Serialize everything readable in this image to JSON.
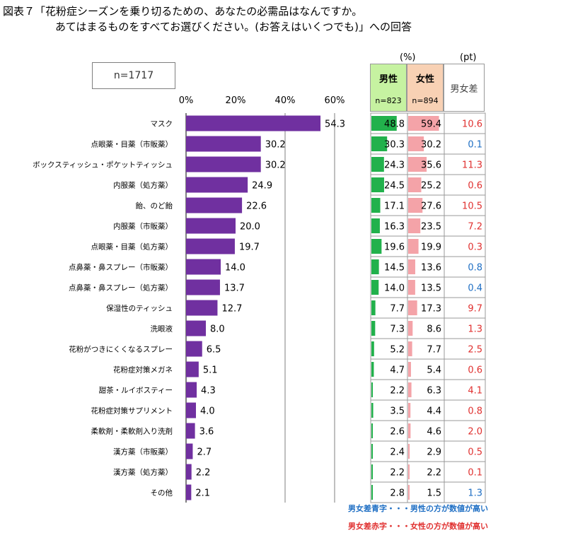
{
  "title_line1": "図表７「花粉症シーズンを乗り切るための、あなたの必需品はなんですか。",
  "title_line2": "あてはまるものをすべてお選びください。(お答えはいくつでも)」への回答",
  "sample_size": "n=1717",
  "pct_unit": "(%)",
  "pt_unit": "(pt)",
  "table_header": {
    "male": "男性",
    "male_n": "n=823",
    "female": "女性",
    "female_n": "n=894",
    "diff": "男女差"
  },
  "notes": {
    "blue": "男女差青字・・・男性の方が数値が高い",
    "red": "男女差赤字・・・女性の方が数値が高い"
  },
  "colors": {
    "bar": "#7030a0",
    "male_bar": "#22b14c",
    "female_bar": "#f4a3a8",
    "diff_male_higher": "#1f6fc4",
    "diff_female_higher": "#e0302f"
  },
  "chart_data": {
    "type": "bar",
    "orientation": "horizontal",
    "xlim": [
      0,
      60
    ],
    "ticks": [
      "0%",
      "20%",
      "40%",
      "60%"
    ],
    "gridlines": [
      40,
      60
    ],
    "categories": [
      "マスク",
      "点眼薬・目薬（市販薬）",
      "ボックスティッシュ・ポケットティッシュ",
      "内服薬（処方薬）",
      "飴、のど飴",
      "内服薬（市販薬）",
      "点眼薬・目薬（処方薬）",
      "点鼻薬・鼻スプレー（市販薬）",
      "点鼻薬・鼻スプレー（処方薬）",
      "保湿性のティッシュ",
      "洗眼液",
      "花粉がつきにくくなるスプレー",
      "花粉症対策メガネ",
      "甜茶・ルイボスティー",
      "花粉症対策サプリメント",
      "柔軟剤・柔軟剤入り洗剤",
      "漢方薬（市販薬）",
      "漢方薬（処方薬）",
      "その他"
    ],
    "values": [
      "54.3",
      "30.2",
      "30.2",
      "24.9",
      "22.6",
      "20.0",
      "19.7",
      "14.0",
      "13.7",
      "12.7",
      "8.0",
      "6.5",
      "5.1",
      "4.3",
      "4.0",
      "3.6",
      "2.7",
      "2.2",
      "2.1"
    ],
    "male": [
      "48.8",
      "30.3",
      "24.3",
      "24.5",
      "17.1",
      "16.3",
      "19.6",
      "14.5",
      "14.0",
      "7.7",
      "7.3",
      "5.2",
      "4.7",
      "2.2",
      "3.5",
      "2.6",
      "2.4",
      "2.2",
      "2.8"
    ],
    "female": [
      "59.4",
      "30.2",
      "35.6",
      "25.2",
      "27.6",
      "23.5",
      "19.9",
      "13.6",
      "13.5",
      "17.3",
      "8.6",
      "7.7",
      "5.4",
      "6.3",
      "4.4",
      "4.6",
      "2.9",
      "2.2",
      "1.5"
    ],
    "diff": [
      "10.6",
      "0.1",
      "11.3",
      "0.6",
      "10.5",
      "7.2",
      "0.3",
      "0.8",
      "0.4",
      "9.7",
      "1.3",
      "2.5",
      "0.6",
      "4.1",
      "0.8",
      "2.0",
      "0.5",
      "0.1",
      "1.3"
    ],
    "diff_higher": [
      "female",
      "male",
      "female",
      "female",
      "female",
      "female",
      "female",
      "male",
      "male",
      "female",
      "female",
      "female",
      "female",
      "female",
      "female",
      "female",
      "female",
      "female",
      "male"
    ]
  }
}
